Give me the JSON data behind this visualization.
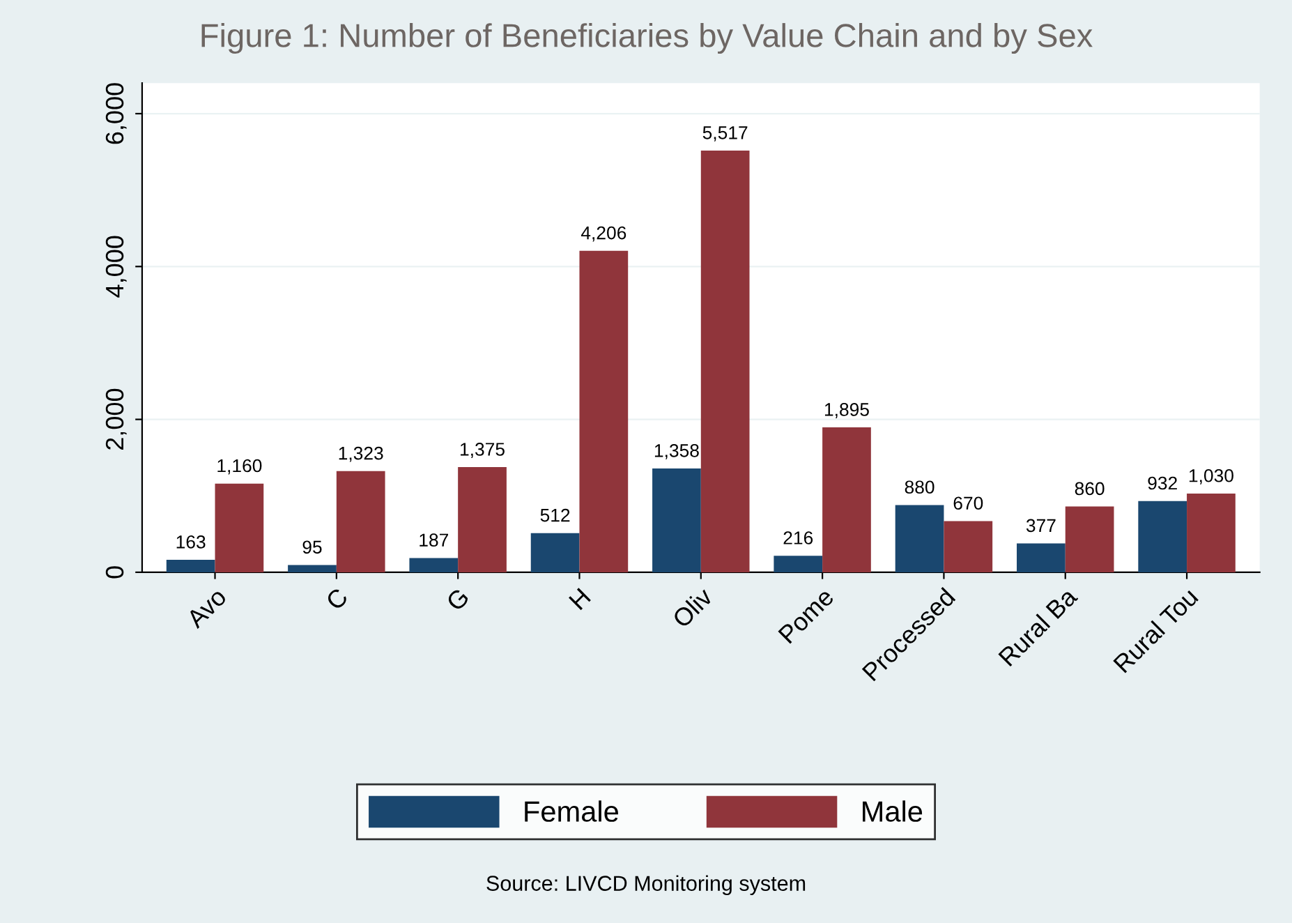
{
  "chart_data": {
    "type": "bar",
    "title": "Figure 1: Number of Beneficiaries by Value Chain and by Sex",
    "categories": [
      "Avo",
      "C",
      "G",
      "H",
      "Oliv",
      "Pome",
      "Processed",
      "Rural Ba",
      "Rural Tou"
    ],
    "series": [
      {
        "name": "Female",
        "color": "#1a476f",
        "values": [
          163,
          95,
          187,
          512,
          1358,
          216,
          880,
          377,
          932
        ],
        "value_labels": [
          "163",
          "95",
          "187",
          "512",
          "1,358",
          "216",
          "880",
          "377",
          "932"
        ]
      },
      {
        "name": "Male",
        "color": "#90353b",
        "values": [
          1160,
          1323,
          1375,
          4206,
          5517,
          1895,
          670,
          860,
          1030
        ],
        "value_labels": [
          "1,160",
          "1,323",
          "1,375",
          "4,206",
          "5,517",
          "1,895",
          "670",
          "860",
          "1,030"
        ]
      }
    ],
    "ylim": [
      0,
      6400
    ],
    "yticks": [
      {
        "value": 0,
        "label": "0"
      },
      {
        "value": 2000,
        "label": "2,000"
      },
      {
        "value": 4000,
        "label": "4,000"
      },
      {
        "value": 6000,
        "label": "6,000"
      }
    ],
    "grid": "y",
    "legend": "bottom",
    "annotations": [
      "Source: LIVCD Monitoring system"
    ]
  }
}
